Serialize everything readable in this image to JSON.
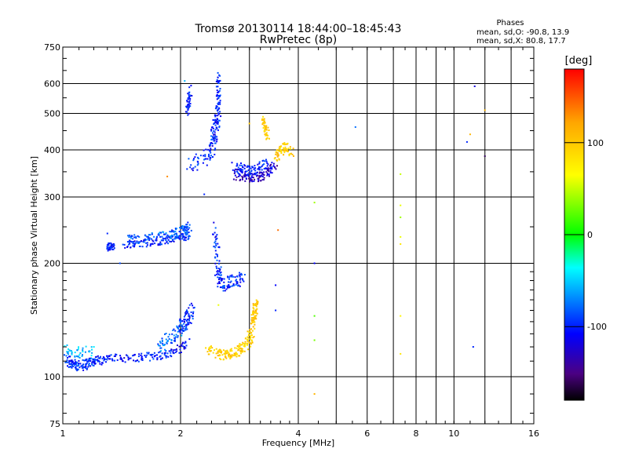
{
  "chart_data": {
    "type": "scatter",
    "title": "Tromsø 20130114 18:44:00–18:45:43",
    "subtitle": "RwPretec (8p)",
    "xlabel": "Frequency [MHz]",
    "ylabel": "Stationary phase Virtual Height [km]",
    "xscale": "log",
    "yscale": "log",
    "xlim": [
      1,
      16
    ],
    "ylim": [
      75,
      750
    ],
    "xticks": [
      1,
      2,
      4,
      6,
      8,
      10,
      16
    ],
    "xticks_minor": [
      3,
      5,
      7,
      9,
      12,
      14
    ],
    "yticks": [
      75,
      100,
      200,
      300,
      400,
      500,
      600,
      750
    ],
    "grid": true,
    "phases_box": {
      "title": "Phases",
      "line1": "mean, sd,O: -90.8, 13.9",
      "line2": "mean, sd,X:  80.8, 17.7"
    },
    "colorbar": {
      "label": "[deg]",
      "range": [
        -180,
        180
      ],
      "ticks": [
        100,
        0,
        -100
      ],
      "colors": [
        "#ff0000",
        "#ffa500",
        "#ffff00",
        "#00ff00",
        "#00ffff",
        "#0000ff",
        "#800080",
        "#000000"
      ]
    },
    "traces": [
      {
        "x": [
          1.02,
          1.05,
          1.08,
          1.12,
          1.16,
          1.2,
          1.25
        ],
        "y": [
          112,
          108,
          107,
          107,
          109,
          110,
          111
        ],
        "phase": -100,
        "jitter": [
          0.02,
          0.03
        ]
      },
      {
        "x": [
          1.25,
          1.35,
          1.5,
          1.65,
          1.8,
          1.95,
          2.1
        ],
        "y": [
          111,
          112,
          112,
          113,
          114,
          117,
          124
        ],
        "phase": -105,
        "jitter": [
          0.015,
          0.025
        ]
      },
      {
        "x": [
          1.02,
          1.1,
          1.2
        ],
        "y": [
          118,
          115,
          116
        ],
        "phase": -60,
        "jitter": [
          0.02,
          0.04
        ]
      },
      {
        "x": [
          1.75,
          1.85,
          1.95,
          2.05
        ],
        "y": [
          120,
          124,
          130,
          135
        ],
        "phase": -80,
        "jitter": [
          0.02,
          0.05
        ]
      },
      {
        "x": [
          2.0,
          2.05,
          2.1,
          2.15
        ],
        "y": [
          135,
          140,
          145,
          150
        ],
        "phase": -100,
        "jitter": [
          0.015,
          0.05
        ]
      },
      {
        "x": [
          2.35,
          2.5,
          2.6,
          2.7,
          2.8,
          2.9,
          3.0,
          3.05
        ],
        "y": [
          118,
          115,
          114,
          115,
          117,
          120,
          125,
          132
        ],
        "phase": 95,
        "jitter": [
          0.02,
          0.03
        ]
      },
      {
        "x": [
          3.05,
          3.08,
          3.1,
          3.12
        ],
        "y": [
          135,
          145,
          150,
          158
        ],
        "phase": 100,
        "jitter": [
          0.015,
          0.03
        ]
      },
      {
        "x": [
          1.3,
          1.32,
          1.35
        ],
        "y": [
          220,
          222,
          221
        ],
        "phase": -105,
        "jitter": [
          0.01,
          0.02
        ]
      },
      {
        "x": [
          1.45,
          1.55,
          1.7,
          1.85,
          2.0,
          2.1
        ],
        "y": [
          224,
          225,
          227,
          230,
          233,
          237
        ],
        "phase": -105,
        "jitter": [
          0.02,
          0.02
        ]
      },
      {
        "x": [
          1.45,
          1.6,
          1.75,
          1.9,
          2.0,
          2.05,
          2.1
        ],
        "y": [
          230,
          232,
          235,
          238,
          242,
          245,
          250
        ],
        "phase": -85,
        "jitter": [
          0.02,
          0.03
        ]
      },
      {
        "x": [
          2.45,
          2.48,
          2.5,
          2.55,
          2.65,
          2.8,
          2.9
        ],
        "y": [
          250,
          210,
          185,
          175,
          178,
          180,
          183
        ],
        "phase": -100,
        "jitter": [
          0.02,
          0.04
        ]
      },
      {
        "x": [
          2.1,
          2.3,
          2.4,
          2.45,
          2.5
        ],
        "y": [
          360,
          380,
          400,
          440,
          500
        ],
        "phase": -100,
        "jitter": [
          0.02,
          0.05
        ]
      },
      {
        "x": [
          2.4,
          2.45,
          2.5,
          2.5,
          2.5
        ],
        "y": [
          420,
          470,
          520,
          580,
          640
        ],
        "phase": -105,
        "jitter": [
          0.012,
          0.04
        ]
      },
      {
        "x": [
          2.08,
          2.1,
          2.12
        ],
        "y": [
          500,
          540,
          580
        ],
        "phase": -100,
        "jitter": [
          0.01,
          0.03
        ]
      },
      {
        "x": [
          2.75,
          2.9,
          3.05,
          3.2,
          3.35,
          3.5
        ],
        "y": [
          345,
          340,
          338,
          342,
          350,
          360
        ],
        "phase": -130,
        "jitter": [
          0.02,
          0.03
        ]
      },
      {
        "x": [
          2.75,
          2.9,
          3.05,
          3.2,
          3.4
        ],
        "y": [
          360,
          355,
          352,
          360,
          370
        ],
        "phase": -100,
        "jitter": [
          0.02,
          0.03
        ]
      },
      {
        "x": [
          3.5,
          3.6,
          3.7,
          3.85
        ],
        "y": [
          380,
          400,
          410,
          395
        ],
        "phase": 95,
        "jitter": [
          0.02,
          0.03
        ]
      },
      {
        "x": [
          3.25,
          3.3,
          3.35
        ],
        "y": [
          480,
          455,
          430
        ],
        "phase": 95,
        "jitter": [
          0.01,
          0.03
        ]
      },
      {
        "x": [
          1.3,
          1.4,
          1.85,
          2.05,
          2.3,
          2.5,
          3.0,
          3.5,
          3.5,
          3.55,
          4.4,
          4.4,
          4.4,
          4.4,
          4.4,
          5.6,
          7.3,
          7.3,
          7.3,
          7.3,
          7.3,
          7.3,
          7.3,
          10.8,
          11.0,
          11.3,
          11.2,
          12.0,
          12.0
        ],
        "y": [
          240,
          200,
          340,
          610,
          305,
          155,
          470,
          150,
          175,
          245,
          290,
          200,
          145,
          125,
          90,
          460,
          345,
          285,
          265,
          235,
          225,
          145,
          115,
          420,
          440,
          590,
          120,
          510,
          385
        ],
        "phase": 0,
        "jitter": [
          0,
          0
        ]
      }
    ],
    "scatter_phases": [
      -100,
      -90,
      130,
      -60,
      -100,
      60,
      100,
      -100,
      -110,
      140,
      40,
      -110,
      20,
      30,
      110,
      -80,
      50,
      60,
      40,
      60,
      80,
      70,
      80,
      -100,
      110,
      -120,
      -100,
      110,
      -160
    ]
  }
}
